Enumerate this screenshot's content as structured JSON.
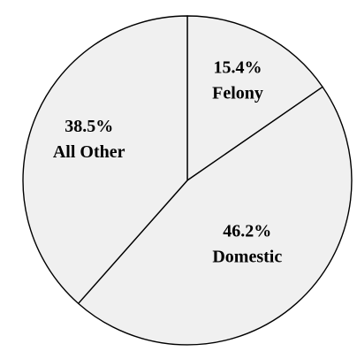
{
  "chart_data": {
    "type": "pie",
    "title": "",
    "slices": [
      {
        "label": "Felony",
        "value": 15.4,
        "value_text": "15.4%"
      },
      {
        "label": "Domestic",
        "value": 46.2,
        "value_text": "46.2%"
      },
      {
        "label": "All Other",
        "value": 38.5,
        "value_text": "38.5%"
      }
    ],
    "start_angle": "12 o'clock",
    "direction": "clockwise",
    "legend": "none",
    "labels": "inside slices",
    "colors": {
      "fill": "#f0f0f0",
      "stroke": "#000000",
      "label": "#000000"
    }
  }
}
